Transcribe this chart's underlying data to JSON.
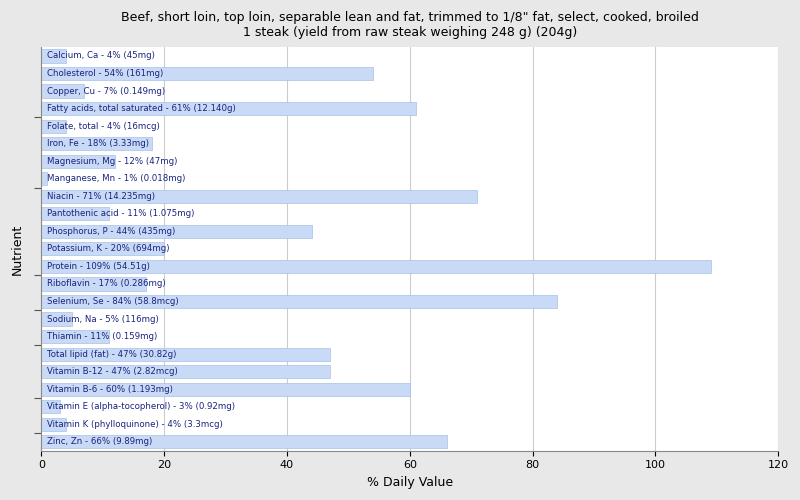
{
  "title": "Beef, short loin, top loin, separable lean and fat, trimmed to 1/8\" fat, select, cooked, broiled\n1 steak (yield from raw steak weighing 248 g) (204g)",
  "xlabel": "% Daily Value",
  "ylabel": "Nutrient",
  "xlim": [
    0,
    120
  ],
  "xticks": [
    0,
    20,
    40,
    60,
    80,
    100,
    120
  ],
  "bar_color": "#c8daf5",
  "bar_edge_color": "#a8c0e8",
  "background_color": "#e8e8e8",
  "plot_bg_color": "#ffffff",
  "label_color": "#1a237e",
  "nutrients": [
    {
      "name": "Calcium, Ca - 4% (45mg)",
      "value": 4
    },
    {
      "name": "Cholesterol - 54% (161mg)",
      "value": 54
    },
    {
      "name": "Copper, Cu - 7% (0.149mg)",
      "value": 7
    },
    {
      "name": "Fatty acids, total saturated - 61% (12.140g)",
      "value": 61
    },
    {
      "name": "Folate, total - 4% (16mcg)",
      "value": 4
    },
    {
      "name": "Iron, Fe - 18% (3.33mg)",
      "value": 18
    },
    {
      "name": "Magnesium, Mg - 12% (47mg)",
      "value": 12
    },
    {
      "name": "Manganese, Mn - 1% (0.018mg)",
      "value": 1
    },
    {
      "name": "Niacin - 71% (14.235mg)",
      "value": 71
    },
    {
      "name": "Pantothenic acid - 11% (1.075mg)",
      "value": 11
    },
    {
      "name": "Phosphorus, P - 44% (435mg)",
      "value": 44
    },
    {
      "name": "Potassium, K - 20% (694mg)",
      "value": 20
    },
    {
      "name": "Protein - 109% (54.51g)",
      "value": 109
    },
    {
      "name": "Riboflavin - 17% (0.286mg)",
      "value": 17
    },
    {
      "name": "Selenium, Se - 84% (58.8mcg)",
      "value": 84
    },
    {
      "name": "Sodium, Na - 5% (116mg)",
      "value": 5
    },
    {
      "name": "Thiamin - 11% (0.159mg)",
      "value": 11
    },
    {
      "name": "Total lipid (fat) - 47% (30.82g)",
      "value": 47
    },
    {
      "name": "Vitamin B-12 - 47% (2.82mcg)",
      "value": 47
    },
    {
      "name": "Vitamin B-6 - 60% (1.193mg)",
      "value": 60
    },
    {
      "name": "Vitamin E (alpha-tocopherol) - 3% (0.92mg)",
      "value": 3
    },
    {
      "name": "Vitamin K (phylloquinone) - 4% (3.3mcg)",
      "value": 4
    },
    {
      "name": "Zinc, Zn - 66% (9.89mg)",
      "value": 66
    }
  ]
}
